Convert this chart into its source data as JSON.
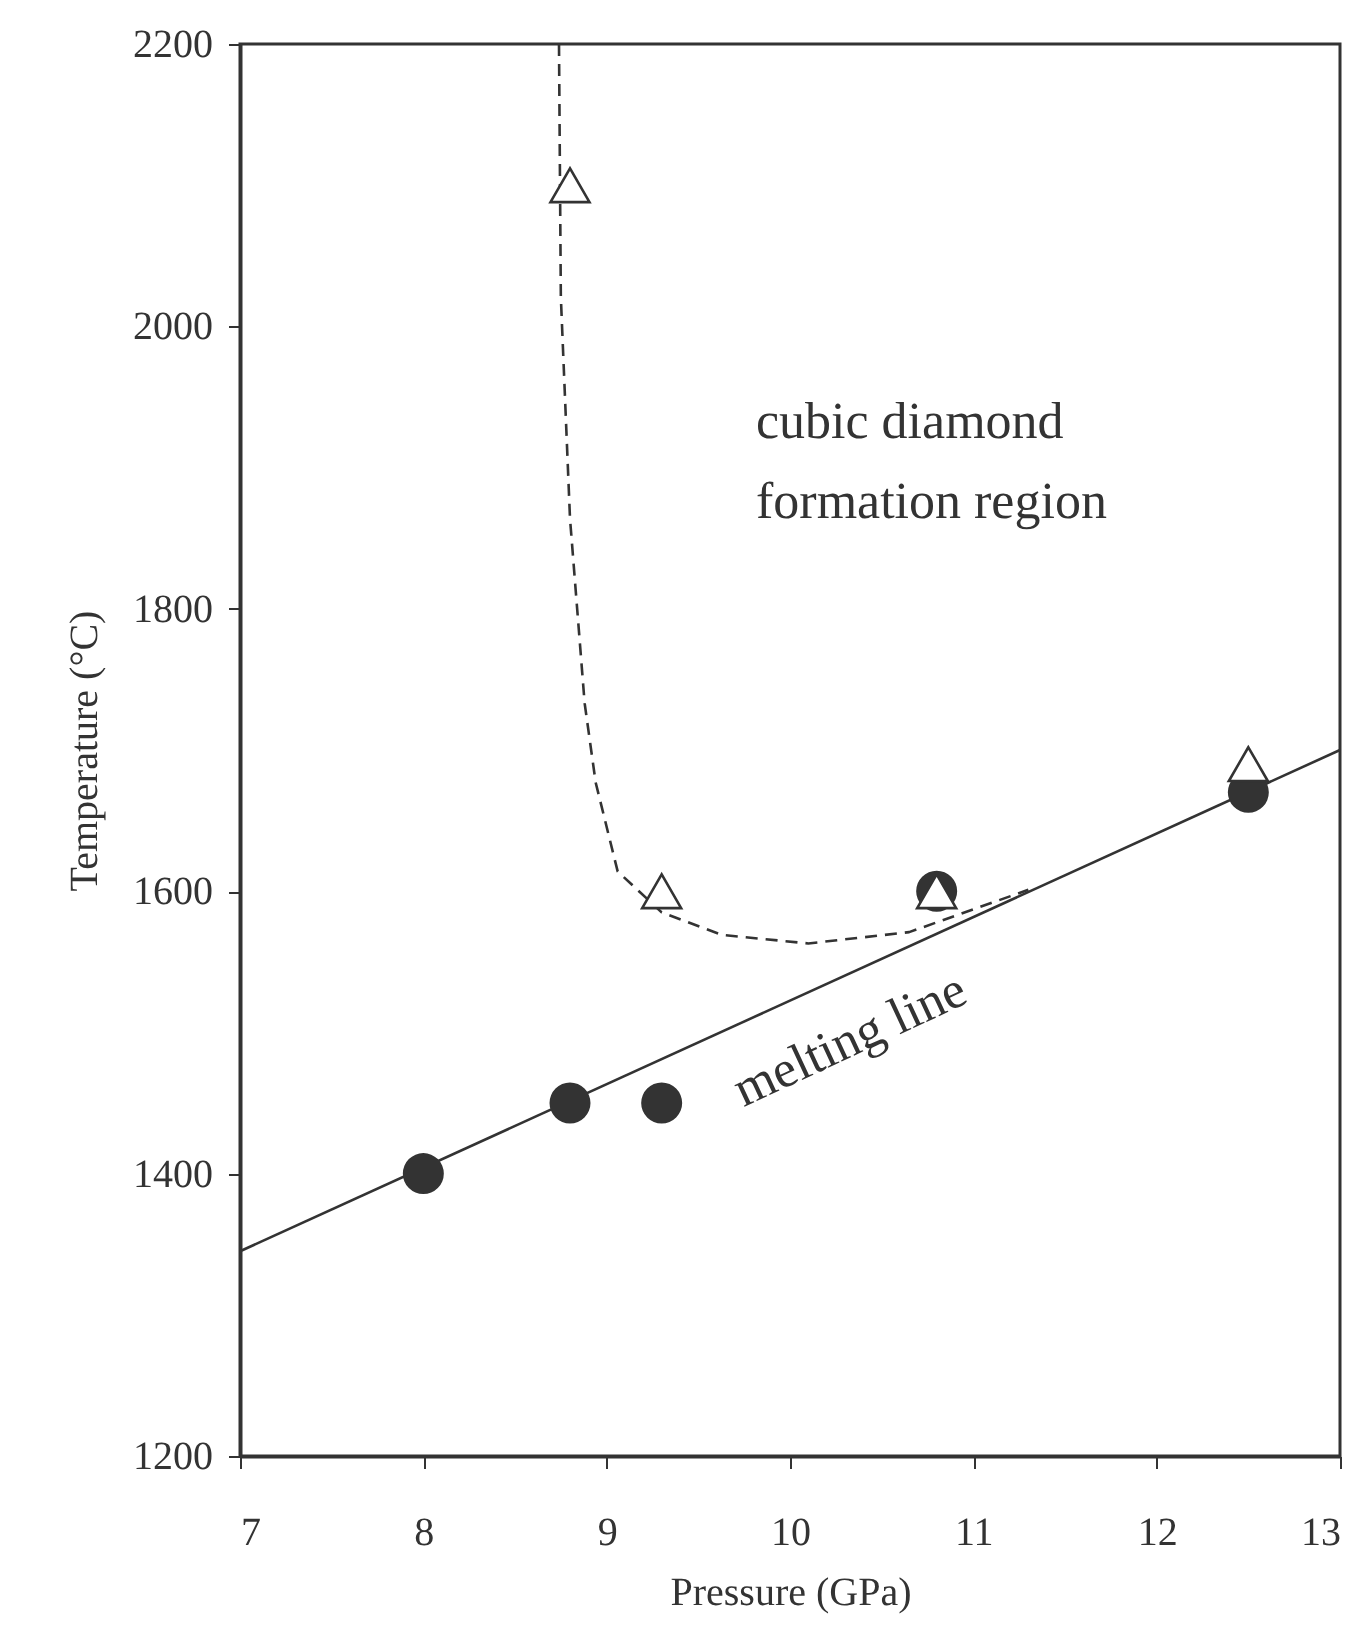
{
  "chart_data": {
    "type": "scatter",
    "xlabel": "Pressure (GPa)",
    "ylabel": "Temperature (°C)",
    "xlim": [
      7,
      13
    ],
    "xticks": [
      7,
      8,
      9,
      10,
      11,
      12,
      13
    ],
    "ylim": [
      1200,
      2200
    ],
    "yticks": [
      1200,
      1400,
      1600,
      1800,
      2000,
      2200
    ],
    "grid": false,
    "series": [
      {
        "type": "line",
        "line_style": "solid",
        "marker": "none",
        "color": "#333333",
        "x": [
          7,
          13
        ],
        "values": [
          1345,
          1700
        ]
      },
      {
        "type": "line",
        "line_style": "dashed",
        "marker": "none",
        "color": "#333333",
        "x": [
          8.74,
          8.75,
          8.8,
          8.88,
          8.94,
          9.06,
          9.3,
          9.63,
          10.1,
          10.65,
          11.3
        ],
        "values": [
          2200,
          2021,
          1864,
          1733,
          1677,
          1614,
          1585,
          1569,
          1563,
          1571,
          1601
        ]
      },
      {
        "marker": "circle",
        "color": "#333333",
        "x": [
          8,
          8.8,
          9.3,
          10.8,
          12.5
        ],
        "values": [
          1400,
          1450,
          1450,
          1600,
          1670
        ]
      },
      {
        "marker": "triangle",
        "color": "#333333",
        "x": [
          8.8,
          9.3,
          10.8,
          12.5
        ],
        "values": [
          2100,
          1600,
          1600,
          1690
        ]
      }
    ],
    "annotations": [
      "cubic diamond formation region",
      "melting line"
    ]
  }
}
